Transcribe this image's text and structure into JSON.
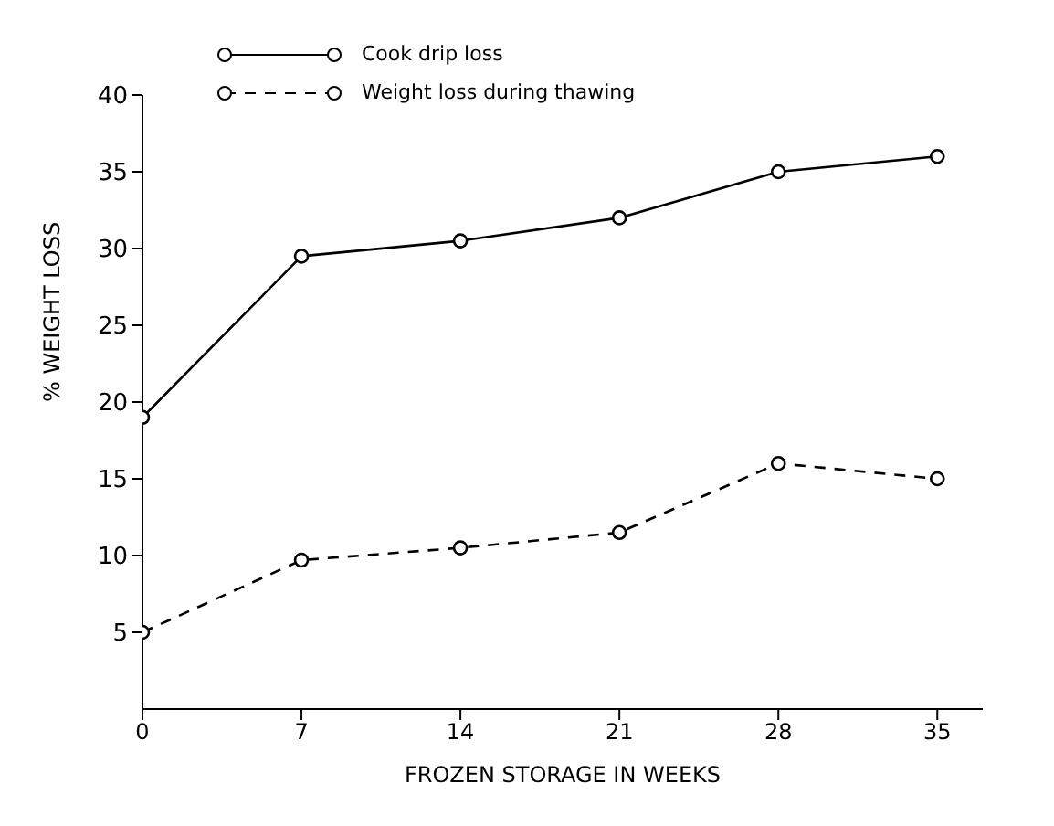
{
  "chart_data": {
    "type": "line",
    "xlabel": "FROZEN STORAGE IN WEEKS",
    "ylabel": "% WEIGHT LOSS",
    "x": [
      0,
      7,
      14,
      21,
      28,
      35
    ],
    "xlim": [
      0,
      37
    ],
    "xticks": [
      0,
      7,
      14,
      21,
      28,
      35
    ],
    "ylim": [
      0,
      40
    ],
    "yticks": [
      5,
      10,
      15,
      20,
      25,
      30,
      35,
      40
    ],
    "grid": false,
    "legend": "top",
    "marker": "circle",
    "series": [
      {
        "name": "Cook drip loss",
        "color": "#000000",
        "line_style": "solid",
        "values": [
          19,
          29.5,
          30.5,
          32,
          35,
          36
        ]
      },
      {
        "name": "Weight loss during thawing",
        "color": "#000000",
        "line_style": "dashed",
        "values": [
          5,
          9.7,
          10.5,
          11.5,
          16,
          15
        ]
      }
    ]
  }
}
